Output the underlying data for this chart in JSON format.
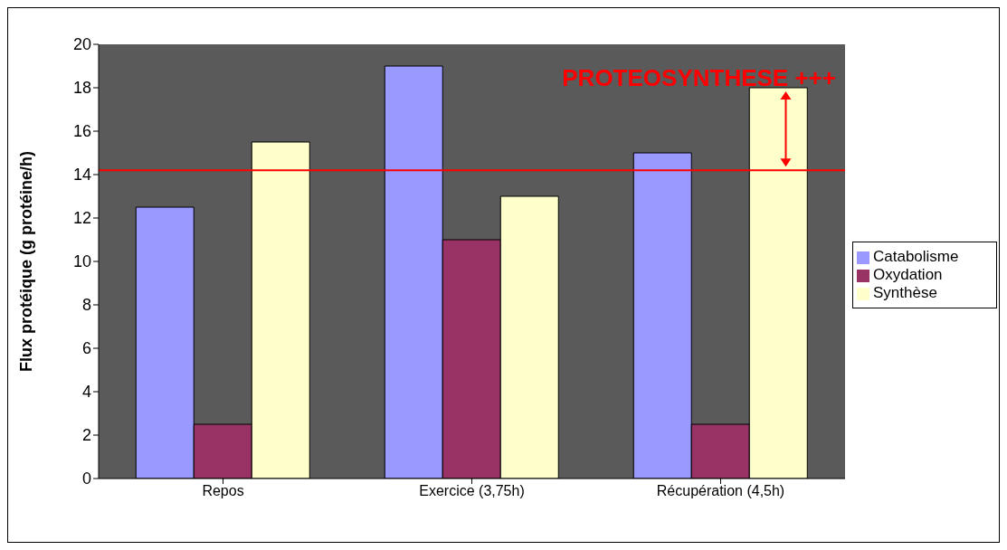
{
  "chart_data": {
    "type": "bar",
    "ylabel": "Flux protéique (g protéine/h)",
    "categories": [
      "Repos",
      "Exercice (3,75h)",
      "Récupération (4,5h)"
    ],
    "series": [
      {
        "name": "Catabolisme",
        "color": "#9999ff",
        "values": [
          12.5,
          19,
          15
        ]
      },
      {
        "name": "Oxydation",
        "color": "#993366",
        "values": [
          2.5,
          11,
          2.5
        ]
      },
      {
        "name": "Synthèse",
        "color": "#ffffcc",
        "values": [
          15.5,
          13,
          18
        ]
      }
    ],
    "ylim": [
      0,
      20
    ],
    "yticks": [
      0,
      2,
      4,
      6,
      8,
      10,
      12,
      14,
      16,
      18,
      20
    ],
    "grid": false,
    "legend": "right",
    "ref_lines": [
      {
        "axis": "y",
        "value": 14.2,
        "color": "#ff0000"
      }
    ],
    "annotations": [
      "PROTEOSYNTHESE +++"
    ]
  }
}
